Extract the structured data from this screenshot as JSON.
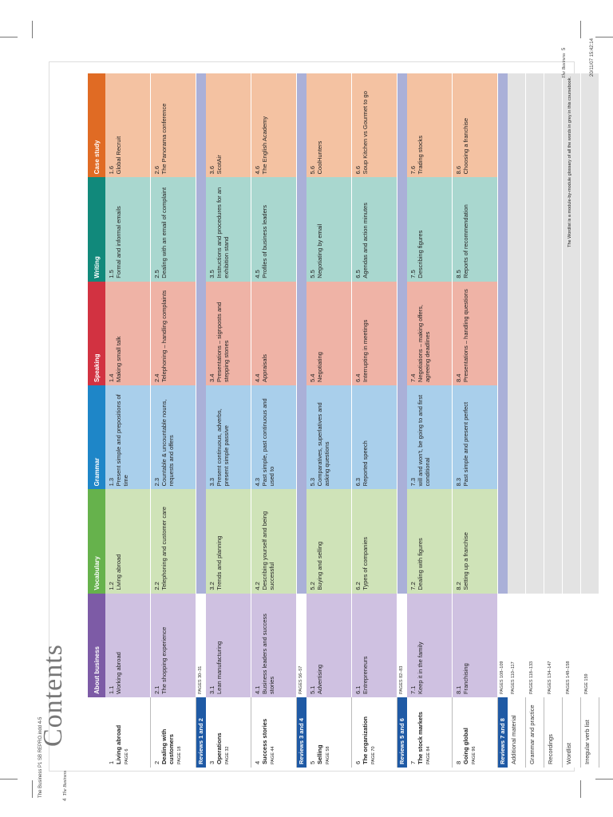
{
  "title": "Contents",
  "headers": {
    "about": "About business",
    "vocab": "Vocabulary",
    "grammar": "Grammar",
    "speaking": "Speaking",
    "writing": "Writing",
    "case": "Case study"
  },
  "units": [
    {
      "num": "1",
      "name": "Living abroad",
      "page": "PAGE 6",
      "about": {
        "n": "1.1",
        "t": "Working abroad"
      },
      "vocab": {
        "n": "1.2",
        "t": "Living abroad"
      },
      "grammar": {
        "n": "1.3",
        "t": "Present simple and prepositions of time"
      },
      "speaking": {
        "n": "1.4",
        "t": "Making small talk"
      },
      "writing": {
        "n": "1.5",
        "t": "Formal and informal emails"
      },
      "case": {
        "n": "1.6",
        "t": "Global Recruit"
      }
    },
    {
      "num": "2",
      "name": "Dealing with customers",
      "page": "PAGE 18",
      "about": {
        "n": "2.1",
        "t": "The shopping experience"
      },
      "vocab": {
        "n": "2.2",
        "t": "Telephoning and customer care"
      },
      "grammar": {
        "n": "2.3",
        "t": "Countable & uncountable nouns, requests and offers"
      },
      "speaking": {
        "n": "2.4",
        "t": "Telephoning – handling complaints"
      },
      "writing": {
        "n": "2.5",
        "t": "Dealing with an email of complaint"
      },
      "case": {
        "n": "2.6",
        "t": "The Panorama conference"
      }
    },
    {
      "review": "Reviews 1 and 2",
      "pages": "PAGES 30–31"
    },
    {
      "num": "3",
      "name": "Operations",
      "page": "PAGE 32",
      "about": {
        "n": "3.1",
        "t": "Lean manufacturing"
      },
      "vocab": {
        "n": "3.2",
        "t": "Trends and planning"
      },
      "grammar": {
        "n": "3.3",
        "t": "Present continuous, adverbs, present simple passive"
      },
      "speaking": {
        "n": "3.4",
        "t": "Presentations – signposts and stepping stones"
      },
      "writing": {
        "n": "3.5",
        "t": "Instructions and procedures for an exhibition stand"
      },
      "case": {
        "n": "3.6",
        "t": "ScotAir"
      }
    },
    {
      "num": "4",
      "name": "Success stories",
      "page": "PAGE 44",
      "about": {
        "n": "4.1",
        "t": "Business leaders and success stories"
      },
      "vocab": {
        "n": "4.2",
        "t": "Describing yourself and being successful"
      },
      "grammar": {
        "n": "4.3",
        "t": "Past simple, past continuous and used to"
      },
      "speaking": {
        "n": "4.4",
        "t": "Appraisals"
      },
      "writing": {
        "n": "4.5",
        "t": "Profiles of business leaders"
      },
      "case": {
        "n": "4.6",
        "t": "The English Academy"
      }
    },
    {
      "review": "Reviews 3 and 4",
      "pages": "PAGES 56–57"
    },
    {
      "num": "5",
      "name": "Selling",
      "page": "PAGE 58",
      "about": {
        "n": "5.1",
        "t": "Advertising"
      },
      "vocab": {
        "n": "5.2",
        "t": "Buying and selling"
      },
      "grammar": {
        "n": "5.3",
        "t": "Comparatives, superlatives and asking questions"
      },
      "speaking": {
        "n": "5.4",
        "t": "Negotiating"
      },
      "writing": {
        "n": "5.5",
        "t": "Negotiating by email"
      },
      "case": {
        "n": "5.6",
        "t": "CoolHunters"
      }
    },
    {
      "num": "6",
      "name": "The organization",
      "page": "PAGE 70",
      "about": {
        "n": "6.1",
        "t": "Entrepreneurs"
      },
      "vocab": {
        "n": "6.2",
        "t": "Types of companies"
      },
      "grammar": {
        "n": "6.3",
        "t": "Reported speech"
      },
      "speaking": {
        "n": "6.4",
        "t": "Interrupting in meetings"
      },
      "writing": {
        "n": "6.5",
        "t": "Agendas and action minutes"
      },
      "case": {
        "n": "6.6",
        "t": "Soup Kitchen vs Gourmet to go"
      }
    },
    {
      "review": "Reviews 5 and 6",
      "pages": "PAGES 82–83"
    },
    {
      "num": "7",
      "name": "The stock markets",
      "page": "PAGE 84",
      "about": {
        "n": "7.1",
        "t": "Keep it in the family"
      },
      "vocab": {
        "n": "7.2",
        "t": "Dealing with figures"
      },
      "grammar": {
        "n": "7.3",
        "t": "will and won't, be going to and first conditional"
      },
      "speaking": {
        "n": "7.4",
        "t": "Negotiations – making offers, agreeing deadlines"
      },
      "writing": {
        "n": "7.5",
        "t": "Describing figures"
      },
      "case": {
        "n": "7.6",
        "t": "Trading stocks"
      }
    },
    {
      "num": "8",
      "name": "Going global",
      "page": "PAGE 96",
      "about": {
        "n": "8.1",
        "t": "Franchising"
      },
      "vocab": {
        "n": "8.2",
        "t": "Setting up a franchise"
      },
      "grammar": {
        "n": "8.3",
        "t": "Past simple and present perfect"
      },
      "speaking": {
        "n": "8.4",
        "t": "Presentations – handling questions"
      },
      "writing": {
        "n": "8.5",
        "t": "Reports of recommendation"
      },
      "case": {
        "n": "8.6",
        "t": "Choosing a franchise"
      }
    },
    {
      "review": "Reviews 7 and 8",
      "pages": "PAGES 108–109"
    }
  ],
  "extras": [
    {
      "label": "Additional material",
      "pages": "PAGES 110–117"
    },
    {
      "label": "Grammar and practice",
      "pages": "PAGES 118–133"
    },
    {
      "label": "Recordings",
      "pages": "PAGES 134–147"
    },
    {
      "label": "Wordlist",
      "pages": "PAGES 148–158",
      "note": "The Wordlist is a module-by-module glossary of all the words in grey in this coursebook."
    },
    {
      "label": "Irregular verb list",
      "pages": "PAGE 159"
    }
  ],
  "footer": {
    "left_page": "4",
    "left_brand": "The Business",
    "right_page": "5",
    "right_brand": "The Business",
    "slug": "The Business P1 SB REPRO.indd 4-5",
    "date": "20/11/07 15:42:14"
  }
}
